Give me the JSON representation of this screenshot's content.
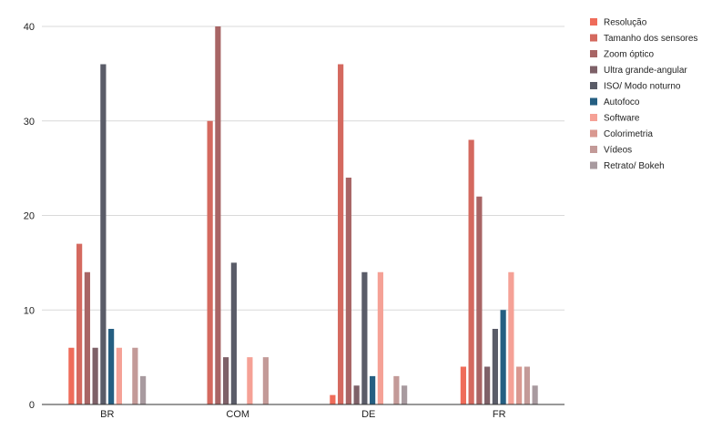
{
  "chart_data": {
    "type": "bar",
    "title": "",
    "xlabel": "",
    "ylabel": "",
    "categories": [
      "BR",
      "COM",
      "DE",
      "FR"
    ],
    "ylim": [
      0,
      40
    ],
    "yticks": [
      0,
      10,
      20,
      30,
      40
    ],
    "grid": true,
    "legend_position": "right",
    "series": [
      {
        "name": "Resolução",
        "color": "#ef6c5a",
        "values": [
          6,
          0,
          1,
          4
        ]
      },
      {
        "name": "Tamanho dos sensores",
        "color": "#d4695f",
        "values": [
          17,
          30,
          36,
          28
        ]
      },
      {
        "name": "Zoom óptico",
        "color": "#a86565",
        "values": [
          14,
          40,
          24,
          22
        ]
      },
      {
        "name": "Ultra grande-angular",
        "color": "#7e6168",
        "values": [
          6,
          5,
          2,
          4
        ]
      },
      {
        "name": "ISO/ Modo noturno",
        "color": "#5a5c68",
        "values": [
          36,
          15,
          14,
          8
        ]
      },
      {
        "name": "Autofoco",
        "color": "#255f82",
        "values": [
          8,
          0,
          3,
          10
        ]
      },
      {
        "name": "Software",
        "color": "#f5a196",
        "values": [
          6,
          5,
          14,
          14
        ]
      },
      {
        "name": "Colorimetria",
        "color": "#d99890",
        "values": [
          0,
          0,
          0,
          4
        ]
      },
      {
        "name": "Vídeos",
        "color": "#c39a98",
        "values": [
          6,
          5,
          3,
          4
        ]
      },
      {
        "name": "Retrato/ Bokeh",
        "color": "#a89a9f",
        "values": [
          3,
          0,
          2,
          2
        ]
      }
    ]
  }
}
